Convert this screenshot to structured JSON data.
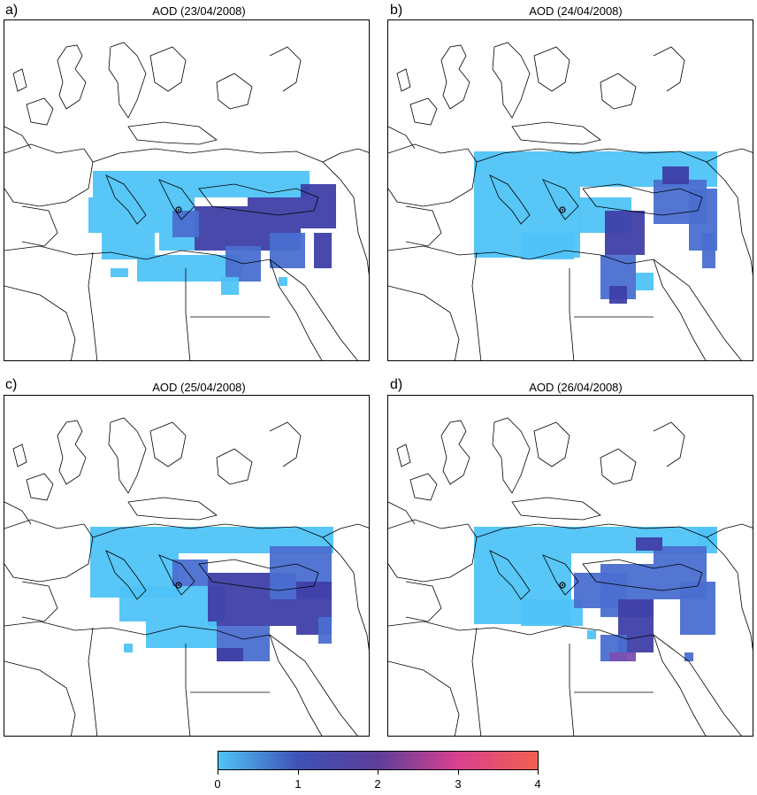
{
  "panels": [
    {
      "letter": "a)",
      "title": "AOD (23/04/2008)"
    },
    {
      "letter": "b)",
      "title": "AOD (24/04/2008)"
    },
    {
      "letter": "c)",
      "title": "AOD (25/04/2008)"
    },
    {
      "letter": "d)",
      "title": "AOD (26/04/2008)"
    }
  ],
  "colorbar": {
    "ticks": [
      "0",
      "1",
      "2",
      "3",
      "4"
    ],
    "colors": [
      "#4fc3f7",
      "#3f51b5",
      "#5c3f99",
      "#d9418f",
      "#f0604f"
    ],
    "range": [
      0,
      4
    ]
  },
  "icons": [
    "site-marker-icon"
  ]
}
